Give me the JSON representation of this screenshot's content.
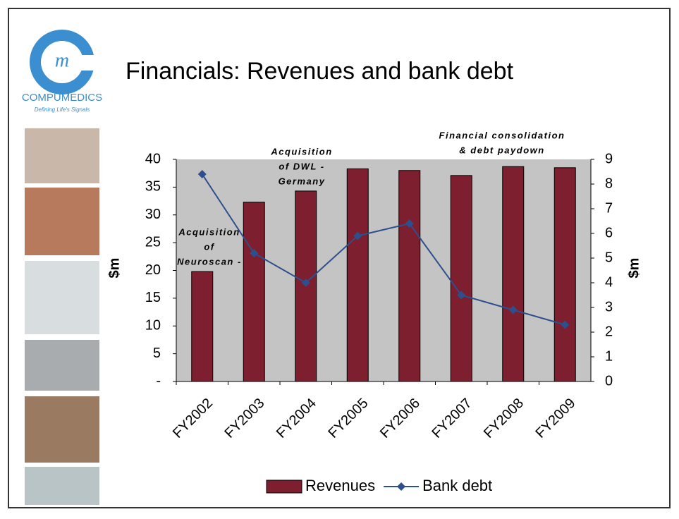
{
  "header": {
    "brand": "COMPUMEDICS",
    "tagline": "Defining Life's Signals"
  },
  "chart_data": {
    "type": "bar_line",
    "title": "Financials:  Revenues and bank debt",
    "categories": [
      "FY2002",
      "FY2003",
      "FY2004",
      "FY2005",
      "FY2006",
      "FY2007",
      "FY2008",
      "FY2009"
    ],
    "series": [
      {
        "name": "Revenues",
        "type": "bar",
        "color": "#7d1f2e",
        "values": [
          19.8,
          32.3,
          34.3,
          38.3,
          38.0,
          37.1,
          38.7,
          38.5
        ]
      },
      {
        "name": "Bank debt",
        "type": "line",
        "axis": "y2",
        "color": "#2e4f8e",
        "values": [
          8.4,
          5.2,
          4.0,
          5.9,
          6.4,
          3.5,
          2.9,
          2.3
        ]
      }
    ],
    "ylim": [
      0,
      40
    ],
    "yticks": [
      {
        "value": 0,
        "label": "-"
      },
      5,
      10,
      15,
      20,
      25,
      30,
      35,
      40
    ],
    "y2lim": [
      0,
      9
    ],
    "y2ticks": [
      0,
      1,
      2,
      3,
      4,
      5,
      6,
      7,
      8,
      9
    ],
    "ylabel": "$m",
    "y2label": "$m",
    "annotations": [
      {
        "lines": [
          "Acquisition",
          "of",
          "Neuroscan -"
        ]
      },
      {
        "lines": [
          "Acquisition",
          "of DWL -",
          "Germany"
        ]
      },
      {
        "lines": [
          "Financial consolidation",
          "& debt paydown"
        ]
      }
    ],
    "legend": "bottom"
  }
}
